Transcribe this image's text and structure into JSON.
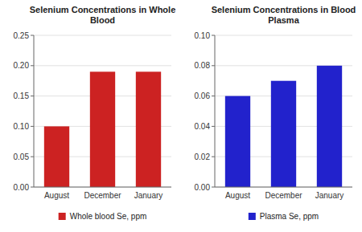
{
  "chart_data": [
    {
      "type": "bar",
      "title": "Selenium Concentrations in Whole\nBlood",
      "categories": [
        "August",
        "December",
        "January"
      ],
      "series": [
        {
          "name": "Whole blood Se, ppm",
          "color": "#cc2222",
          "values": [
            0.1,
            0.19,
            0.19
          ]
        }
      ],
      "ylim": [
        0,
        0.25
      ],
      "yticks": [
        {
          "value": 0,
          "label": "0.00"
        },
        0.05,
        {
          "value": 0.1,
          "label": "0.10"
        },
        0.15,
        {
          "value": 0.2,
          "label": "0.20"
        },
        0.25
      ],
      "grid": true,
      "legend": "bottom"
    },
    {
      "type": "bar",
      "title": "Selenium Concentrations in Blood\nPlasma",
      "categories": [
        "August",
        "December",
        "January"
      ],
      "series": [
        {
          "name": "Plasma Se, ppm",
          "color": "#2222cc",
          "values": [
            0.06,
            0.07,
            0.08
          ]
        }
      ],
      "ylim": [
        0,
        0.1
      ],
      "yticks": [
        {
          "value": 0,
          "label": "0.00"
        },
        0.02,
        0.04,
        0.06,
        0.08,
        {
          "value": 0.1,
          "label": "0.10"
        }
      ],
      "grid": true,
      "legend": "bottom"
    }
  ]
}
